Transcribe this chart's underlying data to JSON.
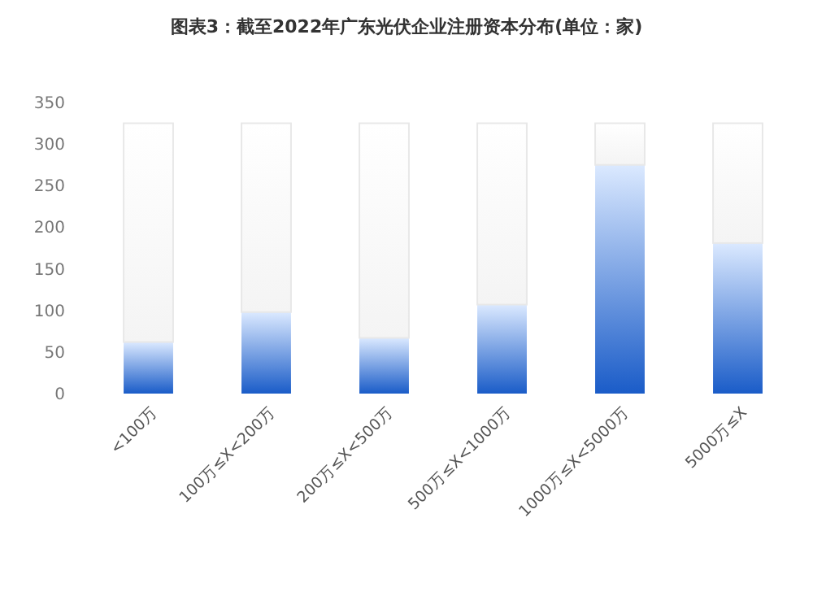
{
  "chart_data": {
    "type": "bar",
    "title": "图表3：截至2022年广东光伏企业注册资本分布(单位：家)",
    "categories": [
      "<100万",
      "100万≤X<200万",
      "200万≤X<500万",
      "500万≤X<1000万",
      "1000万≤X<5000万",
      "5000万≤X"
    ],
    "series": [
      {
        "color": "#1a5cc8",
        "values": [
          62,
          98,
          67,
          107,
          275,
          181
        ]
      },
      {
        "color": "#f4f4f4",
        "values": [
          263,
          227,
          258,
          218,
          50,
          144
        ]
      }
    ],
    "stacked": true,
    "ylim": [
      0,
      350
    ],
    "yticks": [
      0,
      50,
      100,
      150,
      200,
      250,
      300,
      350
    ],
    "grid": false
  }
}
